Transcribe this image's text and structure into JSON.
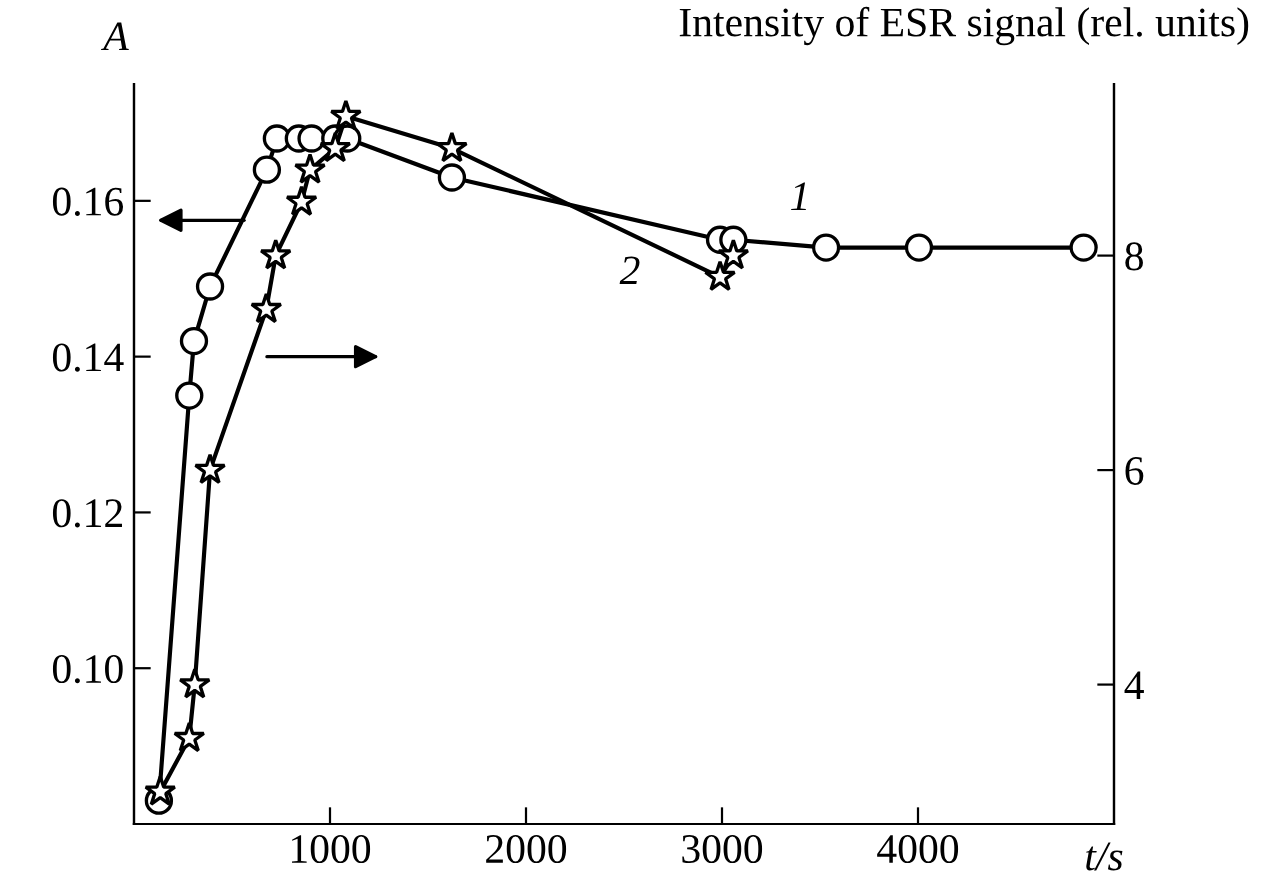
{
  "chart_data": {
    "type": "line",
    "ylabel": "A",
    "y2label": "Intensity of ESR signal (rel. units)",
    "xlabel": "t/s",
    "xlim": [
      0,
      5000
    ],
    "xticks": [
      1000,
      2000,
      3000,
      4000
    ],
    "ylim": [
      0.08,
      0.175
    ],
    "yticks": [
      {
        "value": 0.1,
        "label": "0.10"
      },
      {
        "value": 0.12,
        "label": "0.12"
      },
      {
        "value": 0.14,
        "label": "0.14"
      },
      {
        "value": 0.16,
        "label": "0.16"
      }
    ],
    "y2lim": [
      2.7,
      9.6
    ],
    "y2ticks": [
      4,
      6,
      8
    ],
    "grid": false,
    "line_style": "solid",
    "series": [
      {
        "color": "#000000",
        "marker": "circle",
        "x": [
          127,
          282,
          306,
          388,
          678,
          729,
          841,
          906,
          1027,
          1088,
          1622,
          2990,
          3058,
          3531,
          4005,
          4845
        ],
        "values": [
          0.083,
          0.135,
          0.142,
          0.149,
          0.164,
          0.168,
          0.168,
          0.168,
          0.168,
          0.168,
          0.163,
          0.155,
          0.155,
          0.154,
          0.154,
          0.154
        ]
      },
      {
        "color": "#000000",
        "marker": "star",
        "axis": "y2",
        "x": [
          134,
          282,
          310,
          388,
          675,
          723,
          855,
          898,
          1027,
          1081,
          1622,
          2990,
          3058
        ],
        "values": [
          3.0,
          3.5,
          4.0,
          6.0,
          7.5,
          8.0,
          8.5,
          8.8,
          9.0,
          9.3,
          9.0,
          7.8,
          8.0
        ]
      }
    ],
    "annotations": [
      "1",
      "2"
    ]
  }
}
